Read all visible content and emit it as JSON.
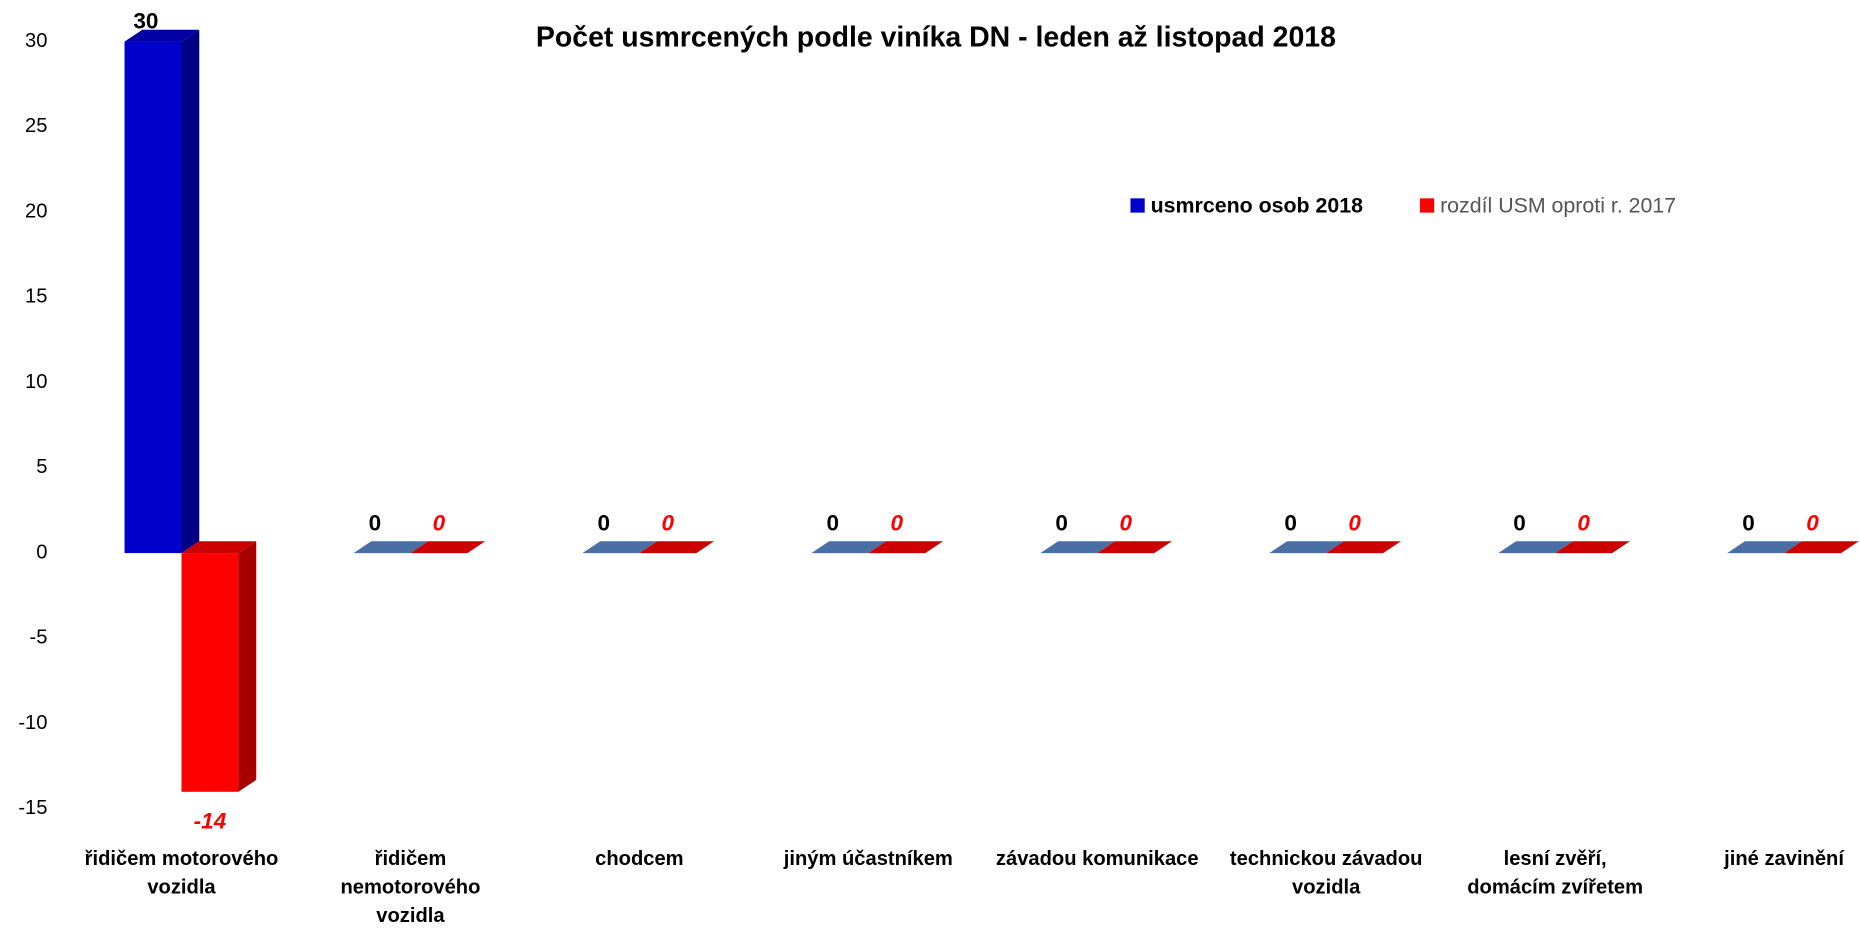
{
  "chart_data": {
    "type": "bar3d",
    "title": "Počet usmrcených podle viníka DN - leden až listopad 2018",
    "categories": [
      "řidičem motorového vozidla",
      "řidičem nemotorového vozidla",
      "chodcem",
      "jiným účastníkem",
      "závadou komunikace",
      "technickou závadou vozidla",
      "lesní zvěří, domácím zvířetem",
      "jiné zavinění"
    ],
    "series": [
      {
        "name": "usmrceno osob 2018",
        "color": "#0000cc",
        "values": [
          30,
          0,
          0,
          0,
          0,
          0,
          0,
          0
        ]
      },
      {
        "name": "rozdíl USM oproti r. 2017",
        "color": "#ff0000",
        "values": [
          -14,
          0,
          0,
          0,
          0,
          0,
          0,
          0
        ]
      }
    ],
    "ylim": [
      -15,
      30
    ],
    "yticks": [
      -15,
      -10,
      -5,
      0,
      5,
      10,
      15,
      20,
      25,
      30
    ],
    "grid": false,
    "legend": "top-right"
  }
}
